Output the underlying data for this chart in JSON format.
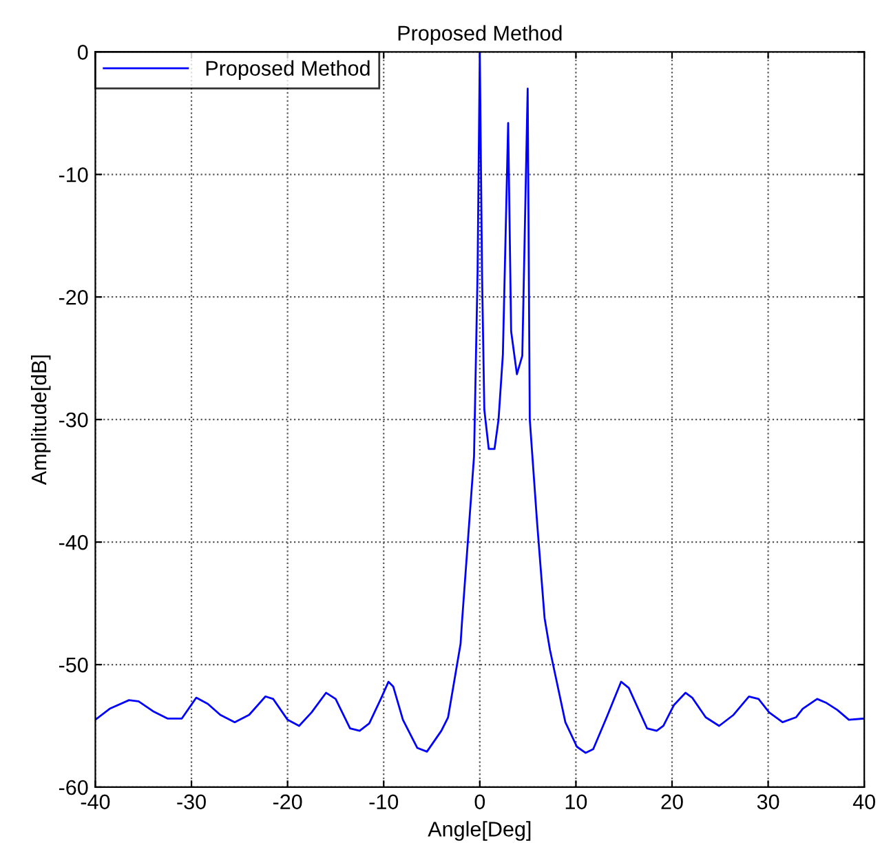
{
  "chart_data": {
    "type": "line",
    "title": "Proposed Method",
    "xlabel": "Angle[Deg]",
    "ylabel": "Amplitude[dB]",
    "xlim": [
      -40,
      40
    ],
    "ylim": [
      -60,
      0
    ],
    "xticks": [
      -40,
      -30,
      -20,
      -10,
      0,
      10,
      20,
      30,
      40
    ],
    "yticks": [
      -60,
      -50,
      -40,
      -30,
      -20,
      -10,
      0
    ],
    "grid": true,
    "legend": "top left",
    "line_style": "solid",
    "marker": "none",
    "series": [
      {
        "name": "Proposed Method",
        "color": "#0000ff",
        "x": [
          -40,
          -38.5,
          -36.5,
          -35.5,
          -34,
          -32.5,
          -31,
          -29.5,
          -28.3,
          -27,
          -25.5,
          -24,
          -22.3,
          -21.5,
          -20,
          -18.8,
          -17.5,
          -16,
          -15,
          -13.5,
          -12.5,
          -11.5,
          -10.3,
          -9.5,
          -9,
          -8,
          -6.5,
          -5.5,
          -4,
          -3.3,
          -2,
          -1.86,
          -0.6,
          -0.23,
          0,
          0.23,
          0.47,
          0.93,
          1.53,
          1.95,
          2.4,
          2.95,
          3.26,
          3.86,
          4.42,
          4.98,
          5.2,
          5.95,
          6.74,
          7.3,
          8.9,
          10.1,
          11.0,
          11.8,
          13.2,
          14.7,
          15.5,
          17.4,
          18.4,
          19.1,
          20.2,
          21.4,
          22.1,
          23.5,
          24.9,
          26.4,
          28.0,
          29.0,
          30.1,
          31.5,
          32.9,
          33.6,
          35.1,
          36,
          37.2,
          38.4,
          40
        ],
        "values": [
          -54.5,
          -53.6,
          -52.9,
          -53,
          -53.8,
          -54.4,
          -54.4,
          -52.7,
          -53.2,
          -54.1,
          -54.7,
          -54.1,
          -52.6,
          -52.8,
          -54.5,
          -55.0,
          -53.9,
          -52.3,
          -52.8,
          -55.2,
          -55.4,
          -54.8,
          -52.8,
          -51.4,
          -51.8,
          -54.5,
          -56.8,
          -57.1,
          -55.4,
          -54.3,
          -48.3,
          -46.6,
          -33,
          -17.9,
          0,
          -18,
          -29.2,
          -32.4,
          -32.4,
          -30,
          -24.7,
          -5.8,
          -22.8,
          -26.3,
          -24.8,
          -3.0,
          -30,
          -38.3,
          -46.2,
          -48.8,
          -54.7,
          -56.7,
          -57.2,
          -56.9,
          -54.3,
          -51.4,
          -51.9,
          -55.2,
          -55.4,
          -55.0,
          -53.3,
          -52.3,
          -52.7,
          -54.3,
          -55.0,
          -54.1,
          -52.6,
          -52.8,
          -53.9,
          -54.7,
          -54.3,
          -53.6,
          -52.8,
          -53.1,
          -53.7,
          -54.5,
          -54.4
        ]
      }
    ]
  }
}
